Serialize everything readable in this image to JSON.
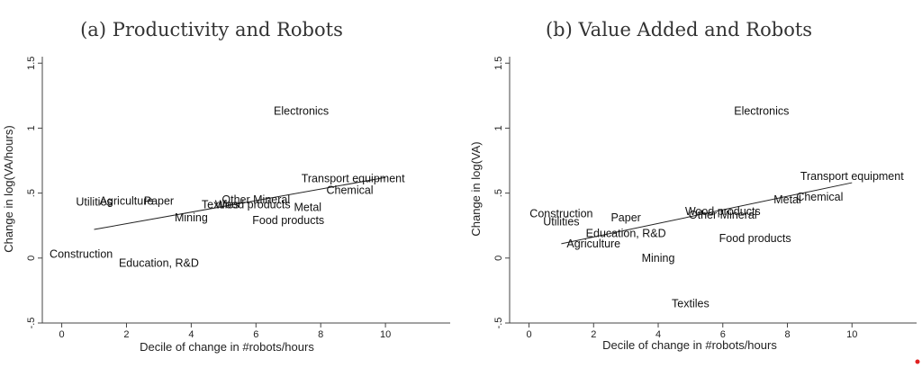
{
  "chart_data": [
    {
      "type": "scatter",
      "title": "(a) Productivity and Robots",
      "xlabel": "Decile of change in #robots/hours",
      "ylabel": "Change in log(VA/hours)",
      "xlim": [
        -0.6,
        12
      ],
      "ylim": [
        -0.5,
        1.55
      ],
      "x_ticks": [
        0,
        2,
        4,
        6,
        8,
        10
      ],
      "x_tick_labels": [
        "0",
        "2",
        "4",
        "6",
        "8",
        "10"
      ],
      "y_ticks": [
        -0.5,
        0,
        0.5,
        1,
        1.5
      ],
      "y_tick_labels": [
        "-.5",
        "0",
        ".5",
        "1",
        "1.5"
      ],
      "grid": false,
      "points": [
        {
          "label": "Electronics",
          "x": 7.4,
          "y": 1.13
        },
        {
          "label": "Transport equipment",
          "x": 9.0,
          "y": 0.61
        },
        {
          "label": "Chemical",
          "x": 8.9,
          "y": 0.52
        },
        {
          "label": "Metal",
          "x": 7.6,
          "y": 0.39
        },
        {
          "label": "Food products",
          "x": 7.0,
          "y": 0.29
        },
        {
          "label": "Other Mineral",
          "x": 6.0,
          "y": 0.45
        },
        {
          "label": "Textiles",
          "x": 4.9,
          "y": 0.41
        },
        {
          "label": "Wood products",
          "x": 5.9,
          "y": 0.41
        },
        {
          "label": "Mining",
          "x": 4.0,
          "y": 0.31
        },
        {
          "label": "Agriculture",
          "x": 2.0,
          "y": 0.44
        },
        {
          "label": "Paper",
          "x": 3.0,
          "y": 0.44
        },
        {
          "label": "Utilities",
          "x": 1.0,
          "y": 0.43
        },
        {
          "label": "Construction",
          "x": 0.6,
          "y": 0.03
        },
        {
          "label": "Education, R&D",
          "x": 3.0,
          "y": -0.04
        }
      ],
      "fit_line": {
        "x": [
          1,
          10
        ],
        "y": [
          0.22,
          0.62
        ]
      }
    },
    {
      "type": "scatter",
      "title": "(b) Value Added and Robots",
      "xlabel": "Decile of change in #robots/hours",
      "ylabel": "Change in log(VA)",
      "xlim": [
        -0.6,
        12
      ],
      "ylim": [
        -0.5,
        1.55
      ],
      "x_ticks": [
        0,
        2,
        4,
        6,
        8,
        10
      ],
      "x_tick_labels": [
        "0",
        "2",
        "4",
        "6",
        "8",
        "10"
      ],
      "y_ticks": [
        -0.5,
        0,
        0.5,
        1,
        1.5
      ],
      "y_tick_labels": [
        "-.5",
        "0",
        ".5",
        "1",
        "1.5"
      ],
      "grid": false,
      "points": [
        {
          "label": "Electronics",
          "x": 7.2,
          "y": 1.13
        },
        {
          "label": "Transport equipment",
          "x": 10.0,
          "y": 0.63
        },
        {
          "label": "Chemical",
          "x": 9.0,
          "y": 0.47
        },
        {
          "label": "Metal",
          "x": 8.0,
          "y": 0.45
        },
        {
          "label": "Wood products",
          "x": 6.0,
          "y": 0.36
        },
        {
          "label": "Other Mineral",
          "x": 6.0,
          "y": 0.33
        },
        {
          "label": "Food products",
          "x": 7.0,
          "y": 0.15
        },
        {
          "label": "Construction",
          "x": 1.0,
          "y": 0.34
        },
        {
          "label": "Utilities",
          "x": 1.0,
          "y": 0.28
        },
        {
          "label": "Paper",
          "x": 3.0,
          "y": 0.31
        },
        {
          "label": "Education, R&D",
          "x": 3.0,
          "y": 0.19
        },
        {
          "label": "Agriculture",
          "x": 2.0,
          "y": 0.11
        },
        {
          "label": "Mining",
          "x": 4.0,
          "y": 0.0
        },
        {
          "label": "Textiles",
          "x": 5.0,
          "y": -0.35
        }
      ],
      "fit_line": {
        "x": [
          1,
          10
        ],
        "y": [
          0.11,
          0.58
        ]
      }
    }
  ]
}
